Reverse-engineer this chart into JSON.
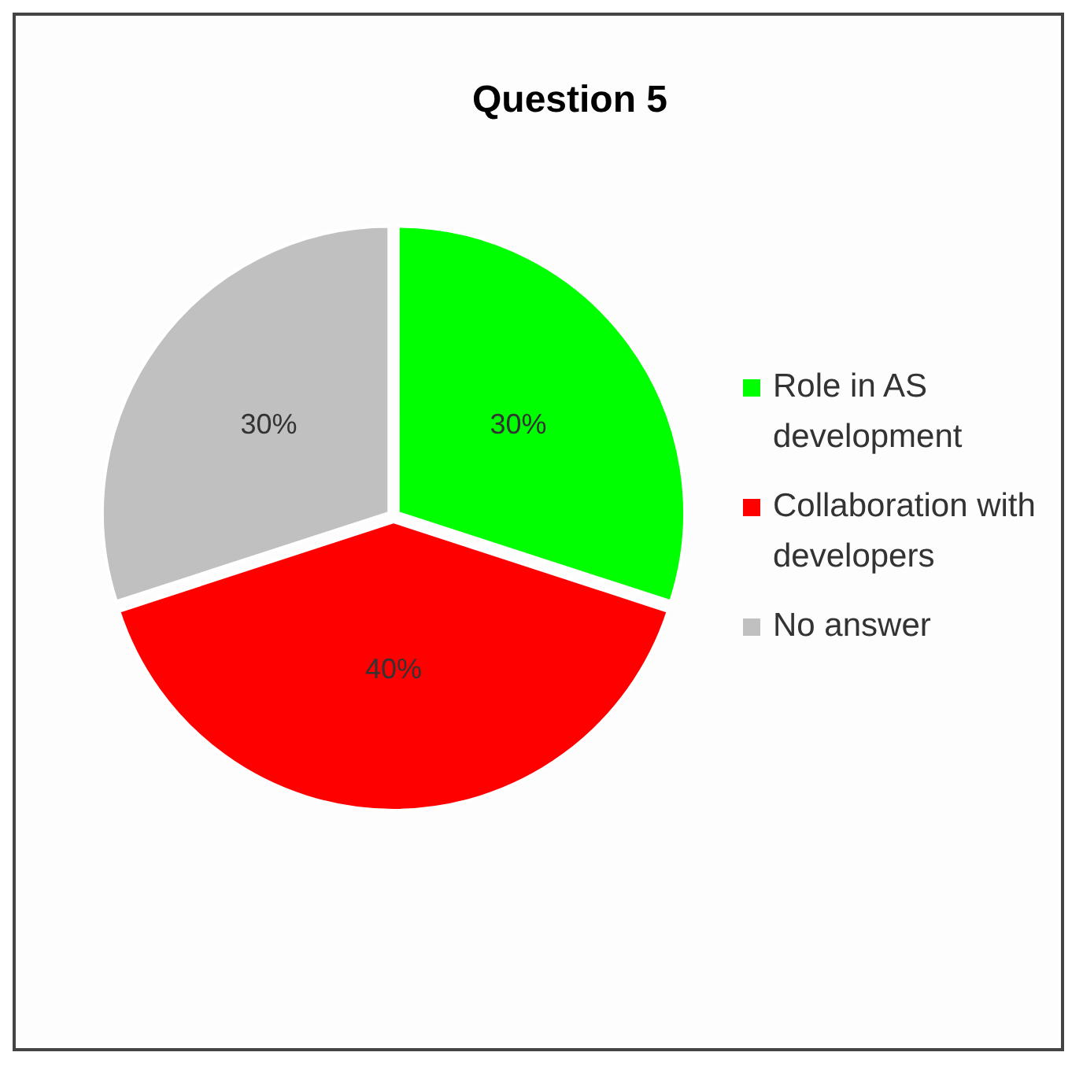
{
  "chart_data": {
    "type": "pie",
    "title": "Question 5",
    "categories": [
      "Role in AS development",
      "Collaboration with developers",
      "No answer"
    ],
    "values": [
      30,
      40,
      30
    ],
    "colors": [
      "#00ff00",
      "#ff0000",
      "#c0c0c0"
    ],
    "value_labels": [
      "30%",
      "40%",
      "30%"
    ],
    "legend": "right"
  }
}
